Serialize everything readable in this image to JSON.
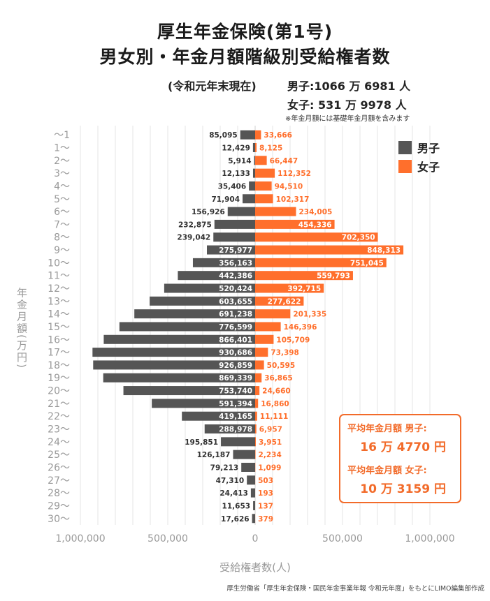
{
  "header": {
    "title_line1": "厚生年金保険(第1号)",
    "title_line2": "男女別・年金月額階級別受給権者数",
    "as_of": "(令和元年末現在)",
    "male_total": "男子:1066 万 6981 人",
    "female_total": "女子:  531 万 9978 人",
    "note": "※年金月額には基礎年金月額を含みます"
  },
  "average_box": {
    "male_label": "平均年金月額 男子:",
    "male_value": "16 万 4770 円",
    "female_label": "平均年金月額 女子:",
    "female_value": "10 万 3159 円"
  },
  "source": "厚生労働省「厚生年金保険・国民年金事業年報 令和元年度」をもとにLIMO編集部作成",
  "colors": {
    "male": "#555555",
    "female": "#ff6f2c",
    "grid": "#e6e6e6",
    "axis_text": "#999999",
    "accent": "#f26b2a"
  },
  "chart_data": {
    "type": "bar",
    "orientation": "horizontal-butterfly",
    "ylabel": "年金月額(万円)",
    "xlabel": "受給権者数(人)",
    "xlim": [
      -1000000,
      1000000
    ],
    "x_ticks": [
      -1000000,
      -500000,
      0,
      500000,
      1000000
    ],
    "x_tick_labels": [
      "1,000,000",
      "500,000",
      "0",
      "500,000",
      "1,000,000"
    ],
    "legend_position": "top-right",
    "grid": true,
    "categories": [
      "〜1",
      "1〜",
      "2〜",
      "3〜",
      "4〜",
      "5〜",
      "6〜",
      "7〜",
      "8〜",
      "9〜",
      "10〜",
      "11〜",
      "12〜",
      "13〜",
      "14〜",
      "15〜",
      "16〜",
      "17〜",
      "18〜",
      "19〜",
      "20〜",
      "21〜",
      "22〜",
      "23〜",
      "24〜",
      "25〜",
      "26〜",
      "27〜",
      "28〜",
      "29〜",
      "30〜"
    ],
    "series": [
      {
        "name": "男子",
        "values": [
          85095,
          12429,
          5914,
          12133,
          35406,
          71904,
          156926,
          232875,
          239042,
          275977,
          356163,
          442386,
          520424,
          603655,
          691238,
          776599,
          866401,
          930686,
          926859,
          869339,
          753740,
          591394,
          419165,
          288978,
          195851,
          126187,
          79213,
          47310,
          24413,
          11653,
          17626
        ],
        "labels": [
          "85,095",
          "12,429",
          "5,914",
          "12,133",
          "35,406",
          "71,904",
          "156,926",
          "232,875",
          "239,042",
          "275,977",
          "356,163",
          "442,386",
          "520,424",
          "603,655",
          "691,238",
          "776,599",
          "866,401",
          "930,686",
          "926,859",
          "869,339",
          "753,740",
          "591,394",
          "419,165",
          "288,978",
          "195,851",
          "126,187",
          "79,213",
          "47,310",
          "24,413",
          "11,653",
          "17,626"
        ]
      },
      {
        "name": "女子",
        "values": [
          33666,
          8125,
          66447,
          112352,
          94510,
          102317,
          234005,
          454336,
          702350,
          848313,
          751045,
          559793,
          392715,
          277622,
          201335,
          146396,
          105709,
          73398,
          50595,
          36865,
          24660,
          16860,
          11111,
          6957,
          3951,
          2234,
          1099,
          503,
          193,
          137,
          379
        ],
        "labels": [
          "33,666",
          "8,125",
          "66,447",
          "112,352",
          "94,510",
          "102,317",
          "234,005",
          "454,336",
          "702,350",
          "848,313",
          "751,045",
          "559,793",
          "392,715",
          "277,622",
          "201,335",
          "146,396",
          "105,709",
          "73,398",
          "50,595",
          "36,865",
          "24,660",
          "16,860",
          "11,111",
          "6,957",
          "3,951",
          "2,234",
          "1,099",
          "503",
          "193",
          "137",
          "379"
        ]
      }
    ]
  }
}
